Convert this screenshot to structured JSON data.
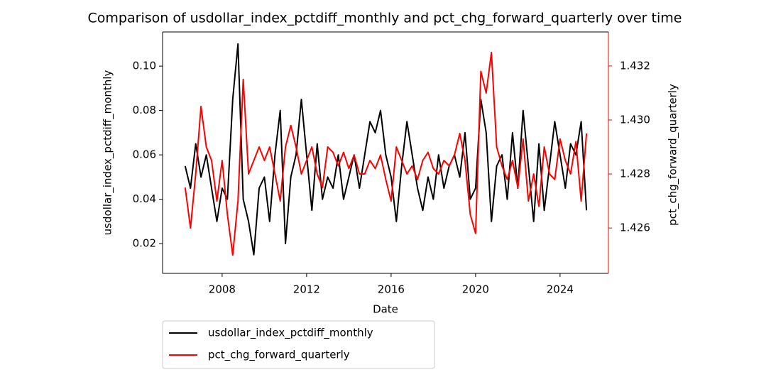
{
  "chart_data": {
    "type": "line",
    "title": "Comparison of usdollar_index_pctdiff_monthly and pct_chg_forward_quarterly over time",
    "xlabel": "Date",
    "ylabel": "usdollar_index_pctdiff_monthly",
    "y2label": "pct_chg_forward_quarterly",
    "x": [
      2006.25,
      2006.5,
      2006.75,
      2007,
      2007.25,
      2007.5,
      2007.75,
      2008,
      2008.25,
      2008.5,
      2008.75,
      2009,
      2009.25,
      2009.5,
      2009.75,
      2010,
      2010.25,
      2010.5,
      2010.75,
      2011,
      2011.25,
      2011.5,
      2011.75,
      2012,
      2012.25,
      2012.5,
      2012.75,
      2013,
      2013.25,
      2013.5,
      2013.75,
      2014,
      2014.25,
      2014.5,
      2014.75,
      2015,
      2015.25,
      2015.5,
      2015.75,
      2016,
      2016.25,
      2016.5,
      2016.75,
      2017,
      2017.25,
      2017.5,
      2017.75,
      2018,
      2018.25,
      2018.5,
      2018.75,
      2019,
      2019.25,
      2019.5,
      2019.75,
      2020,
      2020.25,
      2020.5,
      2020.75,
      2021,
      2021.25,
      2021.5,
      2021.75,
      2022,
      2022.25,
      2022.5,
      2022.75,
      2023,
      2023.25,
      2023.5,
      2023.75,
      2024,
      2024.25,
      2024.5,
      2024.75,
      2025,
      2025.25
    ],
    "series": [
      {
        "name": "usdollar_index_pctdiff_monthly",
        "color": "#000000",
        "values": [
          0.055,
          0.045,
          0.065,
          0.05,
          0.06,
          0.045,
          0.03,
          0.045,
          0.04,
          0.085,
          0.11,
          0.04,
          0.03,
          0.015,
          0.045,
          0.05,
          0.03,
          0.06,
          0.08,
          0.02,
          0.05,
          0.06,
          0.085,
          0.06,
          0.035,
          0.065,
          0.04,
          0.05,
          0.045,
          0.06,
          0.04,
          0.05,
          0.06,
          0.045,
          0.06,
          0.075,
          0.07,
          0.08,
          0.06,
          0.05,
          0.03,
          0.055,
          0.075,
          0.06,
          0.045,
          0.035,
          0.05,
          0.04,
          0.06,
          0.045,
          0.055,
          0.06,
          0.05,
          0.07,
          0.04,
          0.045,
          0.085,
          0.07,
          0.03,
          0.055,
          0.06,
          0.04,
          0.07,
          0.045,
          0.08,
          0.055,
          0.03,
          0.065,
          0.035,
          0.055,
          0.075,
          0.06,
          0.045,
          0.065,
          0.06,
          0.075,
          0.035
        ]
      },
      {
        "name": "pct_chg_forward_quarterly",
        "color": "#ff0000",
        "axis": "y2",
        "values": [
          1.4275,
          1.426,
          1.428,
          1.4305,
          1.429,
          1.4285,
          1.427,
          1.4285,
          1.4265,
          1.425,
          1.427,
          1.4315,
          1.428,
          1.4285,
          1.429,
          1.4285,
          1.429,
          1.428,
          1.427,
          1.429,
          1.4298,
          1.429,
          1.428,
          1.4285,
          1.429,
          1.428,
          1.4275,
          1.429,
          1.4288,
          1.4283,
          1.4288,
          1.4282,
          1.4287,
          1.428,
          1.428,
          1.4285,
          1.4282,
          1.4287,
          1.4278,
          1.427,
          1.429,
          1.4285,
          1.428,
          1.4283,
          1.4278,
          1.4285,
          1.4288,
          1.4282,
          1.428,
          1.4285,
          1.4283,
          1.4287,
          1.4295,
          1.4285,
          1.4265,
          1.4258,
          1.4318,
          1.431,
          1.4325,
          1.429,
          1.4283,
          1.4278,
          1.4285,
          1.4275,
          1.4293,
          1.427,
          1.428,
          1.4268,
          1.429,
          1.428,
          1.4278,
          1.4293,
          1.4285,
          1.428,
          1.4292,
          1.427,
          1.4295
        ]
      }
    ],
    "xlim": [
      2005.18,
      2026.29
    ],
    "xticks": [
      2008,
      2012,
      2016,
      2020,
      2024
    ],
    "ylim": [
      0.0066,
      0.1154
    ],
    "yticks": [
      0.02,
      0.04,
      0.06,
      0.08,
      {
        "value": 0.1,
        "label": "0.10"
      }
    ],
    "y2lim": [
      1.42432,
      1.43326
    ],
    "y2ticks": [
      1.426,
      1.428,
      {
        "value": 1.43,
        "label": "1.430"
      },
      1.432
    ],
    "y2color": "#ff0000"
  }
}
